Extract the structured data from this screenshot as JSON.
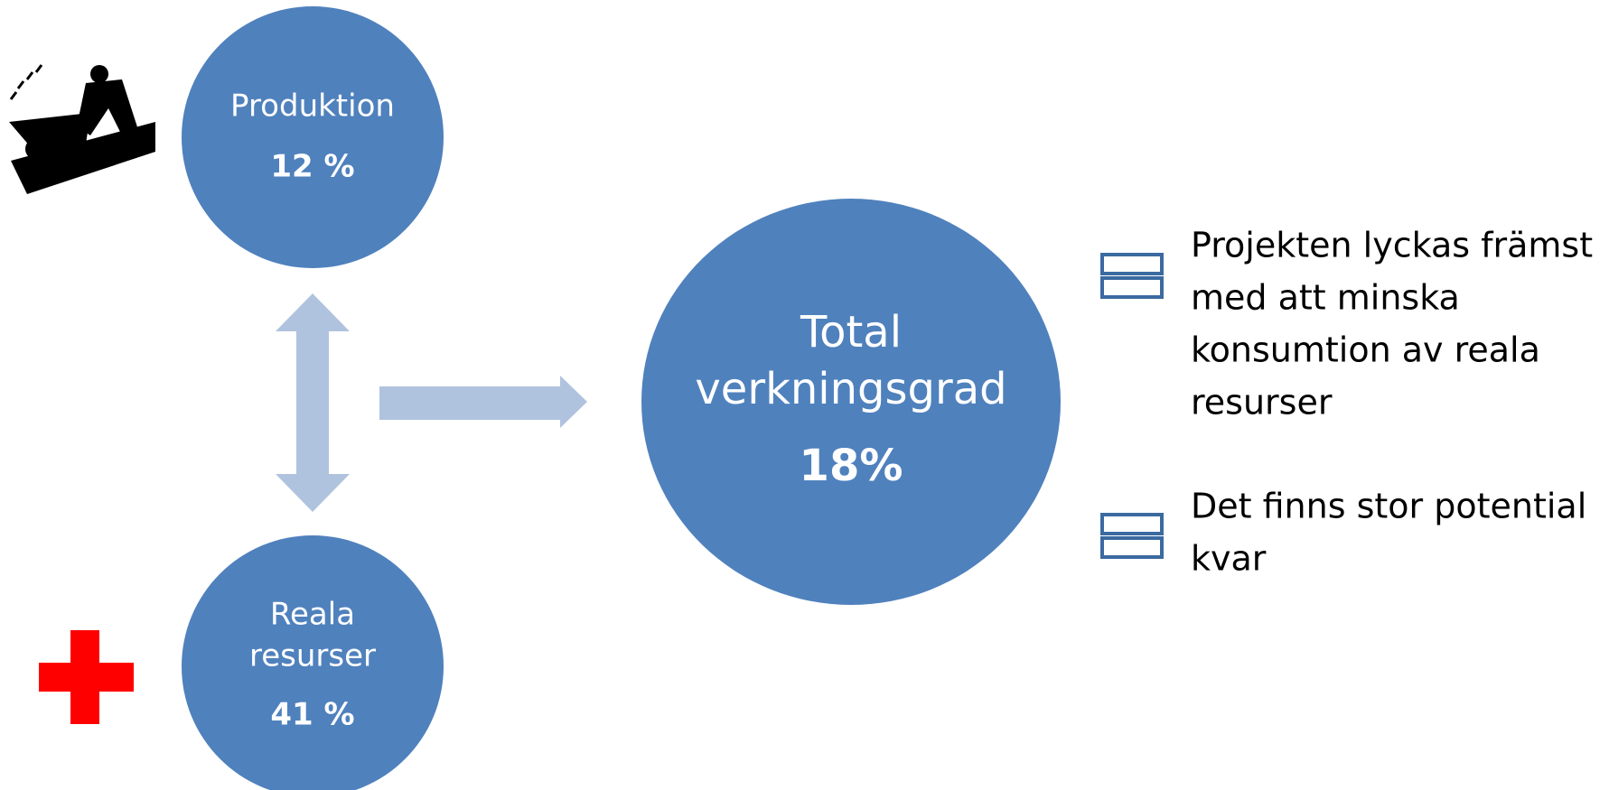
{
  "nodes": [
    {
      "label": [
        "Produktion"
      ],
      "value": "12 %"
    },
    {
      "label": [
        "Reala",
        "resurser"
      ],
      "value": "41 %"
    },
    {
      "label": [
        "Total",
        "verkningsgrad"
      ],
      "value": "18%"
    }
  ],
  "bullets": [
    [
      "Projekten lyckas främst",
      "med att minska",
      "konsumtion av reala",
      "resurser"
    ],
    [
      "Det finns stor potential",
      "kvar"
    ]
  ]
}
